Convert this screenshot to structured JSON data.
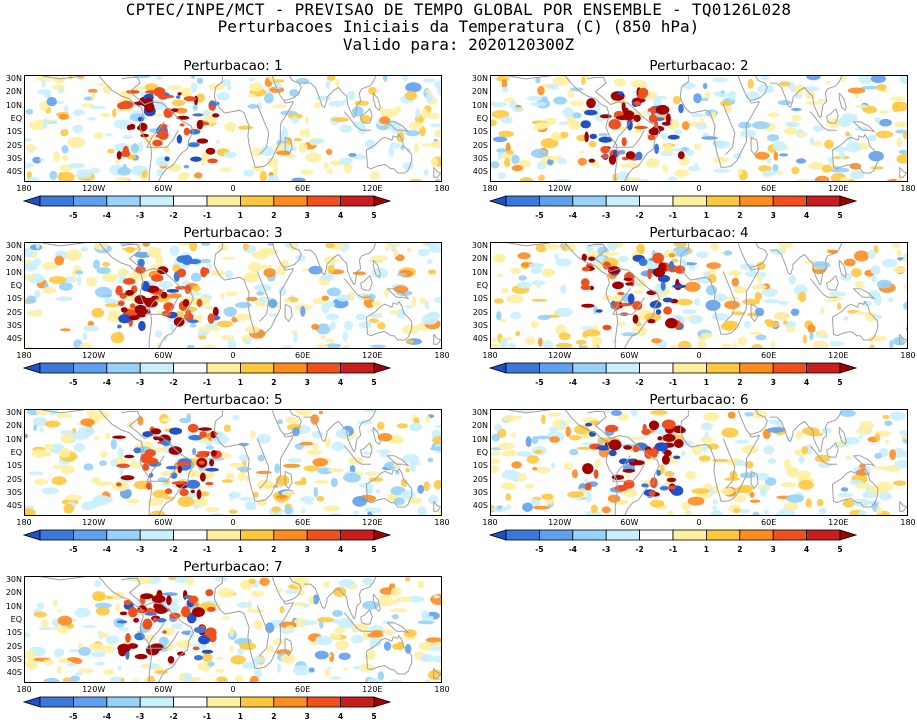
{
  "header": {
    "line1": "CPTEC/INPE/MCT - PREVISAO DE TEMPO GLOBAL POR ENSEMBLE - TQ0126L028",
    "line2": "Perturbacoes Iniciais da Temperatura (C) (850 hPa)",
    "line3": "Valido para: 2020120300Z"
  },
  "panels": [
    {
      "title": "Perturbacao: 1"
    },
    {
      "title": "Perturbacao: 2"
    },
    {
      "title": "Perturbacao: 3"
    },
    {
      "title": "Perturbacao: 4"
    },
    {
      "title": "Perturbacao: 5"
    },
    {
      "title": "Perturbacao: 6"
    },
    {
      "title": "Perturbacao: 7"
    }
  ],
  "lat_labels": [
    "30N",
    "20N",
    "10N",
    "EQ",
    "10S",
    "20S",
    "30S",
    "40S"
  ],
  "lon_labels": [
    "180",
    "120W",
    "60W",
    "0",
    "60E",
    "120E",
    "180"
  ],
  "colorbar": {
    "labels": [
      "-5",
      "-4",
      "-3",
      "-2",
      "-1",
      "1",
      "2",
      "3",
      "4",
      "5"
    ],
    "colors": [
      "#1e50c8",
      "#3c78dc",
      "#5fa0f0",
      "#96d2fa",
      "#c8f0ff",
      "#ffffff",
      "#fff0a0",
      "#ffc83c",
      "#ff8c1e",
      "#f0501e",
      "#c81e1e",
      "#a00000"
    ]
  },
  "map_style": {
    "coast_color": "#a0a0a0",
    "lat_range": [
      -45,
      30
    ],
    "lon_range": [
      -180,
      180
    ]
  }
}
